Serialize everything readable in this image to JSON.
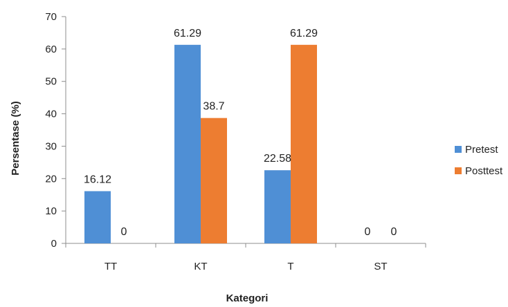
{
  "chart_data": {
    "type": "bar",
    "title": "",
    "xlabel": "Kategori",
    "ylabel": "Persentase (%)",
    "ylim": [
      0,
      70
    ],
    "ytick_step": 10,
    "yticks": [
      "0",
      "10",
      "20",
      "30",
      "40",
      "50",
      "60",
      "70"
    ],
    "categories": [
      "TT",
      "KT",
      "T",
      "ST"
    ],
    "series": [
      {
        "name": "Pretest",
        "color": "#4F8FD5",
        "values": [
          16.12,
          61.29,
          22.58,
          0
        ],
        "labels": [
          "16.12",
          "61.29",
          "22.58",
          "0"
        ]
      },
      {
        "name": "Posttest",
        "color": "#ED7D31",
        "values": [
          0,
          38.7,
          61.29,
          0
        ],
        "labels": [
          "0",
          "38.7",
          "61.29",
          "0"
        ]
      }
    ],
    "legend_position": "right",
    "grid": false
  }
}
